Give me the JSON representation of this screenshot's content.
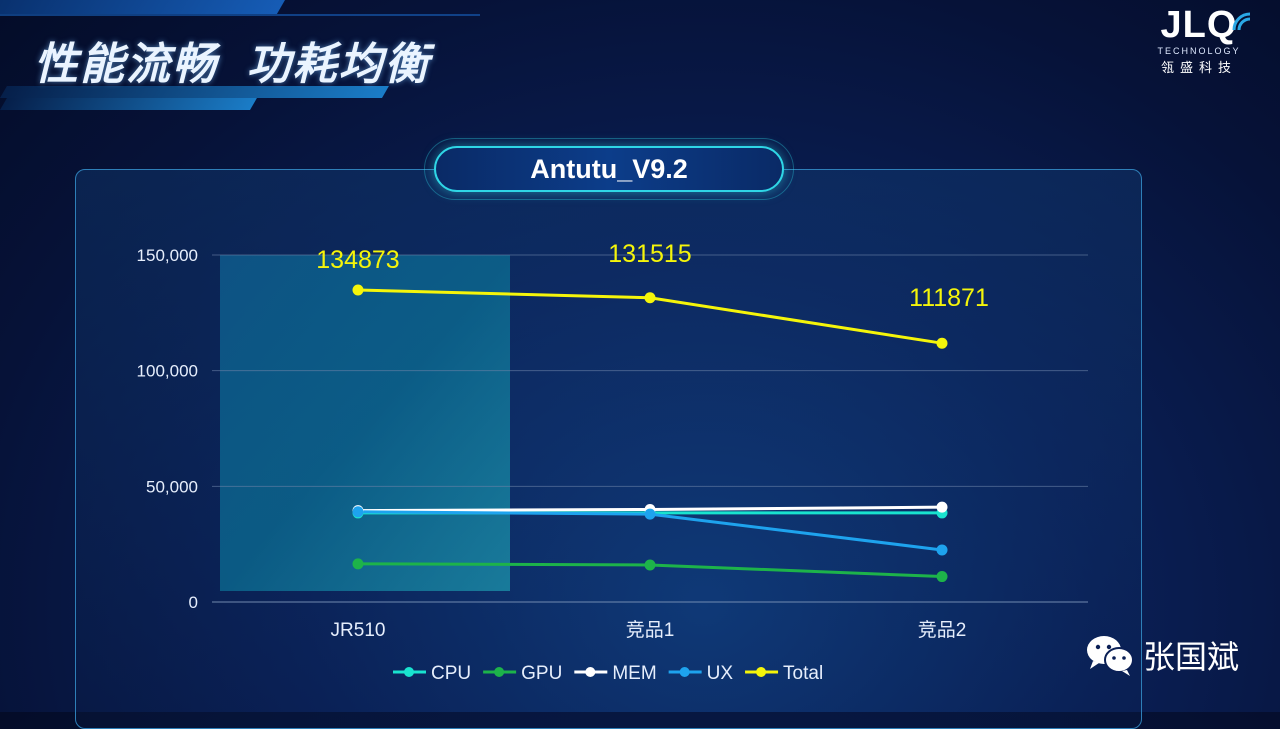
{
  "header": {
    "title": "性能流畅  功耗均衡"
  },
  "logo": {
    "main": "JLQ",
    "sub": "TECHNOLOGY",
    "cn": "瓴盛科技"
  },
  "watermark": {
    "text": "张国斌",
    "icon": "wechat-icon"
  },
  "colors": {
    "CPU": "#19e3cf",
    "GPU": "#1db34a",
    "MEM": "#ffffff",
    "UX": "#1ea3ee",
    "Total": "#f5f50a",
    "accent": "#2fd6e6"
  },
  "chart_data": {
    "type": "line",
    "title": "Antutu_V9.2",
    "categories": [
      "JR510",
      "竞品1",
      "竞品2"
    ],
    "ylim": [
      0,
      150000
    ],
    "yticks": [
      0,
      50000,
      100000,
      150000
    ],
    "ytick_labels": [
      "0",
      "50,000",
      "100,000",
      "150,000"
    ],
    "grid": true,
    "legend": "bottom",
    "series": [
      {
        "name": "CPU",
        "values": [
          38500,
          38500,
          38500
        ]
      },
      {
        "name": "GPU",
        "values": [
          16500,
          16000,
          11000
        ]
      },
      {
        "name": "MEM",
        "values": [
          39500,
          40000,
          41000
        ]
      },
      {
        "name": "UX",
        "values": [
          39000,
          38000,
          22500
        ]
      },
      {
        "name": "Total",
        "values": [
          134873,
          131515,
          111871
        ]
      }
    ],
    "data_labels": {
      "series": "Total",
      "labels": [
        "134873",
        "131515",
        "111871"
      ]
    }
  }
}
